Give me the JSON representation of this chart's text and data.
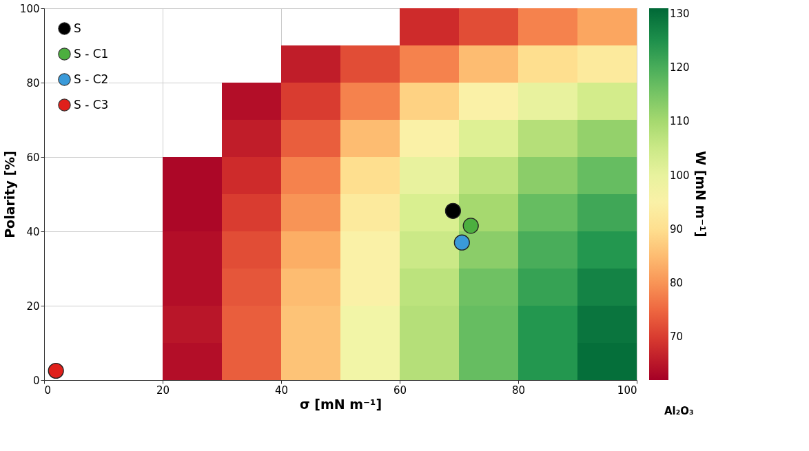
{
  "chart_data": {
    "type": "heatmap",
    "xlabel": "σ [mN m⁻¹]",
    "ylabel": "Polarity [%]",
    "clabel": "W [mN m⁻¹]",
    "xlim": [
      0,
      100
    ],
    "xticks": [
      0,
      20,
      40,
      60,
      80,
      100
    ],
    "ylim": [
      0,
      100
    ],
    "yticks": [
      0,
      20,
      40,
      60,
      80,
      100
    ],
    "clim": [
      62,
      131
    ],
    "cticks": [
      70,
      80,
      90,
      100,
      110,
      120,
      130
    ],
    "grid": true,
    "legend": "top left",
    "x": [
      5,
      15,
      25,
      35,
      45,
      55,
      65,
      75,
      85,
      95
    ],
    "y": [
      95,
      85,
      75,
      65,
      55,
      45,
      35,
      25,
      15,
      5
    ],
    "cells": [
      [
        null,
        null,
        null,
        null,
        null,
        null,
        68,
        72,
        78,
        82
      ],
      [
        null,
        null,
        null,
        null,
        66,
        72,
        78,
        85,
        90,
        93
      ],
      [
        null,
        null,
        null,
        64,
        70,
        78,
        88,
        95,
        100,
        104
      ],
      [
        null,
        null,
        null,
        66,
        74,
        85,
        95,
        102,
        108,
        112
      ],
      [
        null,
        null,
        63,
        68,
        78,
        90,
        100,
        107,
        113,
        117
      ],
      [
        null,
        null,
        63,
        70,
        80,
        93,
        103,
        110,
        117,
        121
      ],
      [
        null,
        null,
        64,
        72,
        83,
        95,
        105,
        113,
        120,
        124
      ],
      [
        null,
        null,
        64,
        73,
        85,
        95,
        107,
        116,
        122,
        127
      ],
      [
        null,
        null,
        65,
        74,
        86,
        98,
        108,
        117,
        124,
        129
      ],
      [
        null,
        null,
        64,
        74,
        86,
        98,
        108,
        117,
        124,
        130
      ]
    ],
    "series": [
      {
        "type": "scatter",
        "name": "S",
        "color": "#000000",
        "x": [
          69
        ],
        "values": [
          45.5
        ]
      },
      {
        "type": "scatter",
        "name": "S - C1",
        "color": "#4caf3f",
        "x": [
          72
        ],
        "values": [
          41.5
        ]
      },
      {
        "type": "scatter",
        "name": "S - C2",
        "color": "#3a9ad9",
        "x": [
          70.5
        ],
        "values": [
          37
        ]
      },
      {
        "type": "scatter",
        "name": "S - C3",
        "color": "#e0201b",
        "x": [
          2
        ],
        "values": [
          2.5
        ]
      }
    ],
    "marker": "circle",
    "annotations": [
      "Al₂O₃"
    ]
  }
}
